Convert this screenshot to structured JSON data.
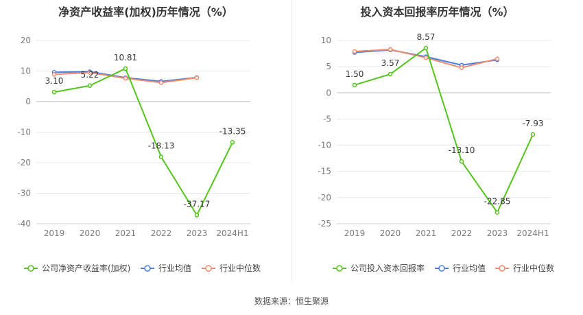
{
  "source_note": "数据来源：恒生聚源",
  "chart_data": [
    {
      "type": "line",
      "title": "净资产收益率(加权)历年情况（%）",
      "categories": [
        "2019",
        "2020",
        "2021",
        "2022",
        "2023",
        "2024H1"
      ],
      "ylim": [
        -40,
        20
      ],
      "yticks": [
        20,
        10,
        0,
        -10,
        -20,
        -30,
        -40
      ],
      "series": [
        {
          "name": "公司净资产收益率(加权)",
          "color": "#52c41a",
          "values": [
            3.1,
            5.22,
            10.81,
            -18.13,
            -37.17,
            -13.35
          ],
          "labels": [
            "3.10",
            "5.22",
            "10.81",
            "-18.13",
            "-37.17",
            "-13.35"
          ]
        },
        {
          "name": "行业均值",
          "color": "#4a7ee0",
          "values": [
            9.6,
            9.8,
            7.8,
            6.6,
            7.9,
            null
          ]
        },
        {
          "name": "行业中位数",
          "color": "#f08a6c",
          "values": [
            8.9,
            9.5,
            7.6,
            6.2,
            7.8,
            null
          ]
        }
      ]
    },
    {
      "type": "line",
      "title": "投入资本回报率历年情况（%）",
      "categories": [
        "2019",
        "2020",
        "2021",
        "2022",
        "2023",
        "2024H1"
      ],
      "ylim": [
        -25,
        10
      ],
      "yticks": [
        10,
        5,
        0,
        -5,
        -10,
        -15,
        -20,
        -25
      ],
      "series": [
        {
          "name": "公司投入资本回报率",
          "color": "#52c41a",
          "values": [
            1.5,
            3.57,
            8.57,
            -13.1,
            -22.85,
            -7.93
          ],
          "labels": [
            "1.50",
            "3.57",
            "8.57",
            "-13.10",
            "-22.85",
            "-7.93"
          ]
        },
        {
          "name": "行业均值",
          "color": "#4a7ee0",
          "values": [
            7.7,
            8.2,
            6.9,
            5.3,
            6.3,
            null
          ]
        },
        {
          "name": "行业中位数",
          "color": "#f08a6c",
          "values": [
            7.9,
            8.3,
            6.7,
            4.8,
            6.5,
            null
          ]
        }
      ]
    }
  ]
}
